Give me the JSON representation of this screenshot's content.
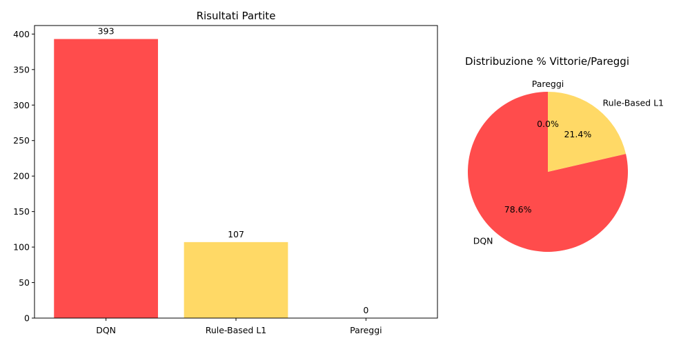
{
  "chart_data": [
    {
      "type": "bar",
      "title": "Risultati Partite",
      "categories": [
        "DQN",
        "Rule-Based L1",
        "Pareggi"
      ],
      "values": [
        393,
        107,
        0
      ],
      "data_labels": [
        "393",
        "107",
        "0"
      ],
      "colors": [
        "#ff4c4c",
        "#ffd966",
        "#ffd966"
      ],
      "ylim": [
        0,
        412
      ],
      "yticks": [
        0,
        50,
        100,
        150,
        200,
        250,
        300,
        350,
        400
      ],
      "xlabel": "",
      "ylabel": "",
      "grid": false
    },
    {
      "type": "pie",
      "title": "Distribuzione % Vittorie/Pareggi",
      "labels": [
        "DQN",
        "Rule-Based L1",
        "Pareggi"
      ],
      "values": [
        78.6,
        21.4,
        0.0
      ],
      "pct_labels": [
        "78.6%",
        "21.4%",
        "0.0%"
      ],
      "colors": [
        "#ff4c4c",
        "#ffd966",
        "#66b3ff"
      ],
      "start_angle_deg": 90,
      "direction": "counterclockwise"
    }
  ]
}
